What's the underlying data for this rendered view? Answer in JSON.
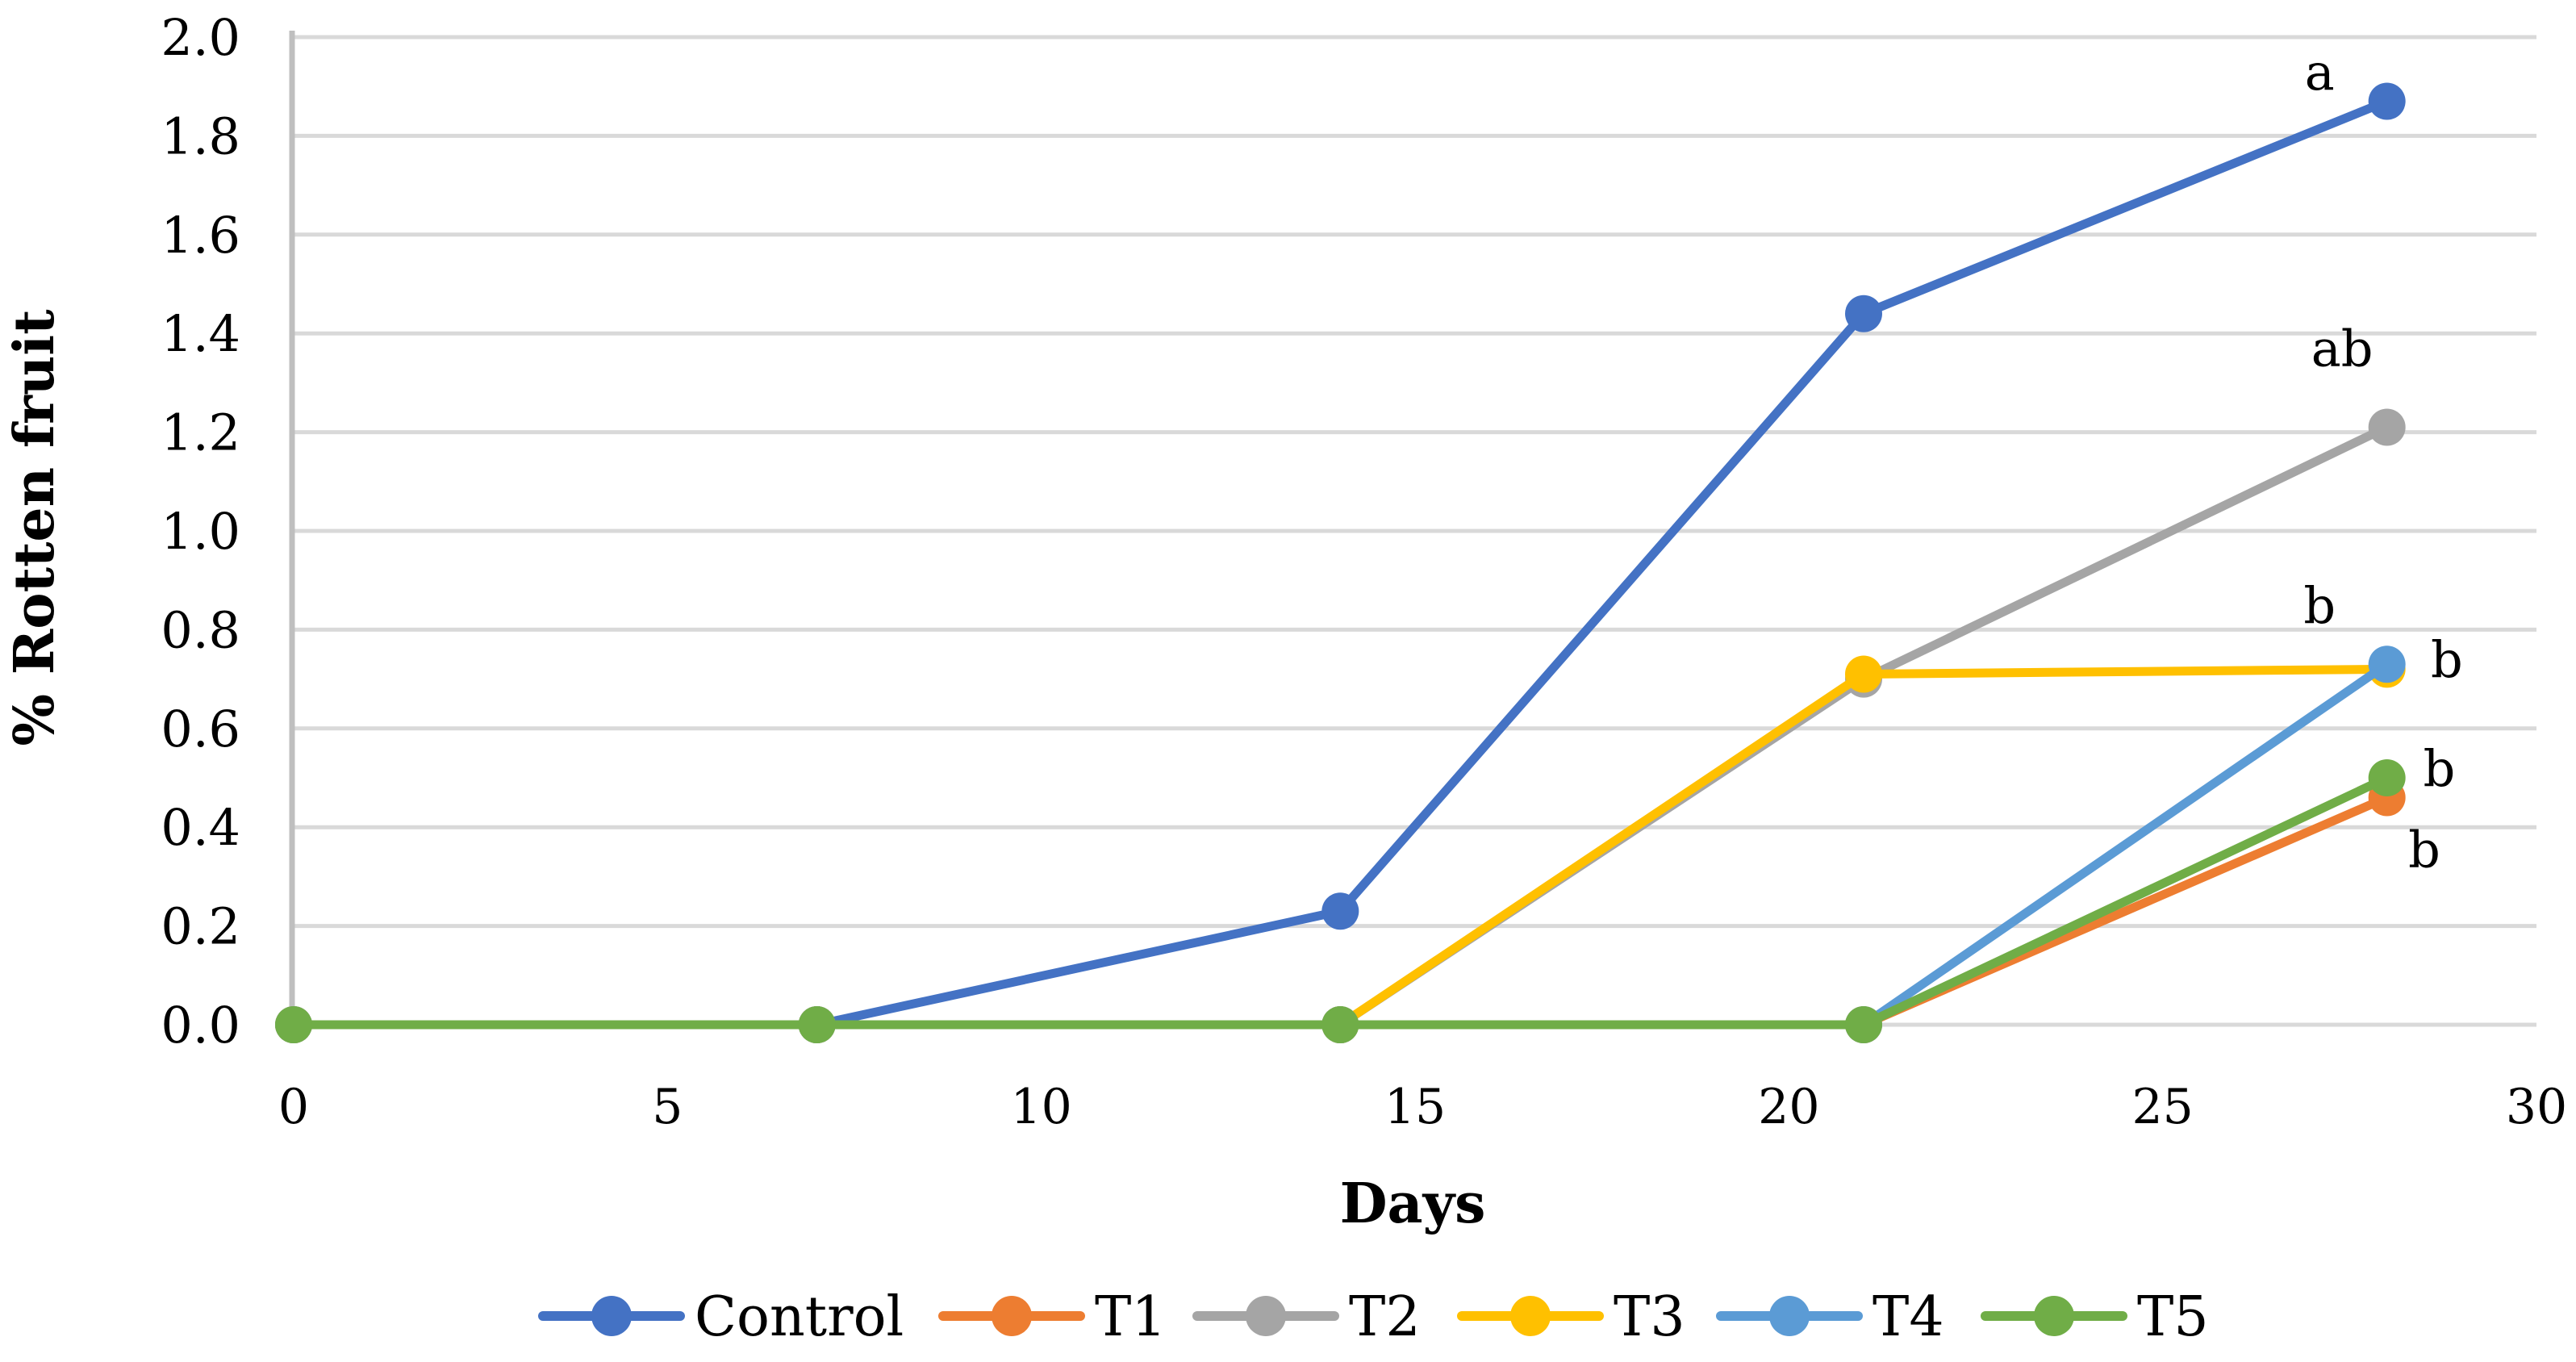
{
  "figure": {
    "background": "#FFFFFF",
    "title": ""
  },
  "chart_data": {
    "type": "line",
    "title": "",
    "xlabel": "Days",
    "ylabel": "% Rotten fruit",
    "x": [
      0,
      7,
      14,
      21,
      28
    ],
    "xlim": [
      0,
      30
    ],
    "x_ticks": [
      "0",
      "5",
      "10",
      "15",
      "20",
      "25",
      "30"
    ],
    "ylim": [
      0.0,
      2.0
    ],
    "y_ticks": [
      "0.0",
      "0.2",
      "0.4",
      "0.6",
      "0.8",
      "1.0",
      "1.2",
      "1.4",
      "1.6",
      "1.8",
      "2.0"
    ],
    "grid": "horizontal-only",
    "legend_position": "bottom-center",
    "series": [
      {
        "name": "Control",
        "color": "#4472C4",
        "marker": "circle",
        "values": [
          0,
          0,
          0.23,
          1.44,
          1.87
        ]
      },
      {
        "name": "T1",
        "color": "#ED7D31",
        "marker": "circle",
        "values": [
          0,
          0,
          0,
          0,
          0.46
        ]
      },
      {
        "name": "T2",
        "color": "#A5A5A5",
        "marker": "circle",
        "values": [
          0,
          0,
          0,
          0.7,
          1.21
        ]
      },
      {
        "name": "T3",
        "color": "#FFC000",
        "marker": "circle",
        "values": [
          0,
          0,
          0,
          0.71,
          0.72
        ]
      },
      {
        "name": "T4",
        "color": "#5B9BD5",
        "marker": "circle",
        "values": [
          0,
          0,
          0,
          0,
          0.73
        ]
      },
      {
        "name": "T5",
        "color": "#70AD47",
        "marker": "circle",
        "values": [
          0,
          0,
          0,
          0,
          0.5
        ]
      }
    ],
    "annotations": [
      {
        "text": "a",
        "series": "Control",
        "day": 27.1,
        "value": 1.93
      },
      {
        "text": "ab",
        "series": "T2",
        "day": 27.4,
        "value": 1.37
      },
      {
        "text": "b",
        "series": "T3",
        "day": 27.1,
        "value": 0.85
      },
      {
        "text": "b",
        "series": "T4",
        "day": 28.8,
        "value": 0.74
      },
      {
        "text": "b",
        "series": "T5",
        "day": 28.7,
        "value": 0.52
      },
      {
        "text": "b",
        "series": "T1",
        "day": 28.5,
        "value": 0.355
      }
    ],
    "axis_color": "#BFBFBF",
    "gridline_color": "#D9D9D9",
    "text_color": "#000000"
  }
}
